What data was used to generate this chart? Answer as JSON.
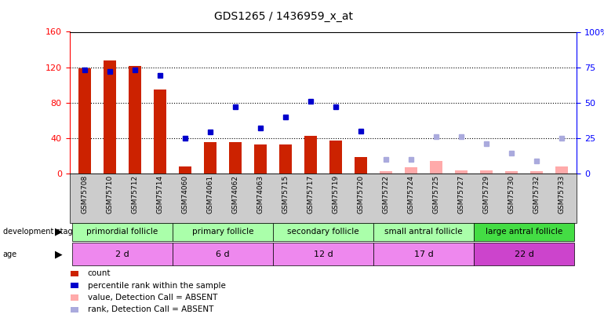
{
  "title": "GDS1265 / 1436959_x_at",
  "samples": [
    "GSM75708",
    "GSM75710",
    "GSM75712",
    "GSM75714",
    "GSM74060",
    "GSM74061",
    "GSM74062",
    "GSM74063",
    "GSM75715",
    "GSM75717",
    "GSM75719",
    "GSM75720",
    "GSM75722",
    "GSM75724",
    "GSM75725",
    "GSM75727",
    "GSM75729",
    "GSM75730",
    "GSM75732",
    "GSM75733"
  ],
  "count_values": [
    119,
    128,
    121,
    95,
    8,
    35,
    35,
    33,
    33,
    42,
    37,
    18,
    null,
    null,
    null,
    null,
    null,
    null,
    null,
    null
  ],
  "count_absent_values": [
    null,
    null,
    null,
    null,
    null,
    null,
    null,
    null,
    null,
    null,
    null,
    null,
    2,
    7,
    14,
    3,
    3,
    2,
    2,
    8
  ],
  "rank_values": [
    73,
    72,
    73,
    69,
    25,
    29,
    47,
    32,
    40,
    51,
    47,
    30,
    null,
    null,
    null,
    null,
    null,
    null,
    null,
    null
  ],
  "rank_absent_values": [
    null,
    null,
    null,
    null,
    null,
    null,
    null,
    null,
    null,
    null,
    null,
    null,
    10,
    10,
    26,
    26,
    21,
    14,
    9,
    25
  ],
  "groups": [
    {
      "label": "primordial follicle",
      "age": "2 d",
      "start": 0,
      "end": 4
    },
    {
      "label": "primary follicle",
      "age": "6 d",
      "start": 4,
      "end": 8
    },
    {
      "label": "secondary follicle",
      "age": "12 d",
      "start": 8,
      "end": 12
    },
    {
      "label": "small antral follicle",
      "age": "17 d",
      "start": 12,
      "end": 16
    },
    {
      "label": "large antral follicle",
      "age": "22 d",
      "start": 16,
      "end": 20
    }
  ],
  "stage_colors": [
    "#aaffaa",
    "#aaffaa",
    "#aaffaa",
    "#aaffaa",
    "#44dd44"
  ],
  "age_colors": [
    "#ee88ee",
    "#ee88ee",
    "#ee88ee",
    "#ee88ee",
    "#cc44cc"
  ],
  "left_ylim": [
    0,
    160
  ],
  "right_ylim": [
    0,
    100
  ],
  "left_yticks": [
    0,
    40,
    80,
    120,
    160
  ],
  "right_yticks": [
    0,
    25,
    50,
    75,
    100
  ],
  "bar_color_present": "#cc2200",
  "bar_color_absent": "#ffaaaa",
  "dot_color_present": "#0000cc",
  "dot_color_absent": "#aaaadd",
  "bar_width": 0.5,
  "background_color": "#ffffff",
  "tick_bg_color": "#cccccc"
}
